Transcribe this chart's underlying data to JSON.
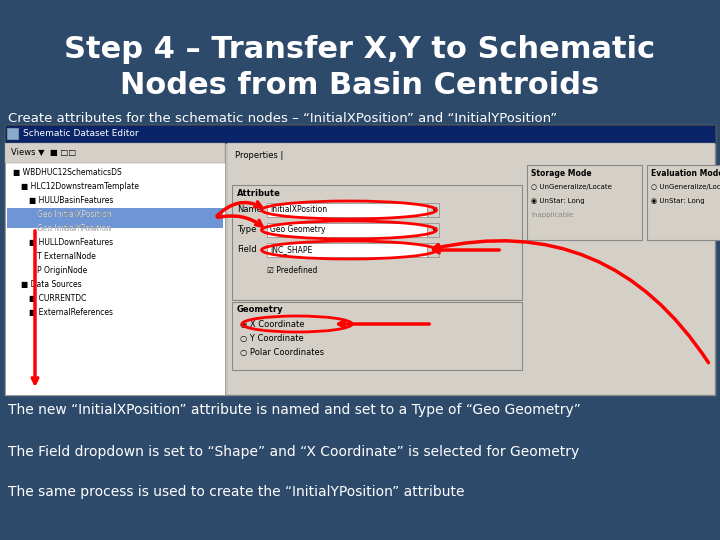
{
  "title_line1": "Step 4 – Transfer X,Y to Schematic",
  "title_line2": "Nodes from Basin Centroids",
  "subtitle": "Create attributes for the schematic nodes – “InitialXPosition” and “InitialYPosition”",
  "bullet1": "The new “InitialXPosition” attribute is named and set to a Type of “Geo Geometry”",
  "bullet2": "The Field dropdown is set to “Shape” and “X Coordinate” is selected for Geometry",
  "bullet3": "The same process is used to create the “InitialYPosition” attribute",
  "bg_color": "#2E4A6B",
  "title_color": "#FFFFFF",
  "subtitle_color": "#FFFFFF",
  "bullet_color": "#FFFFFF",
  "title_fontsize": 22,
  "subtitle_fontsize": 9.5,
  "bullet_fontsize": 10
}
